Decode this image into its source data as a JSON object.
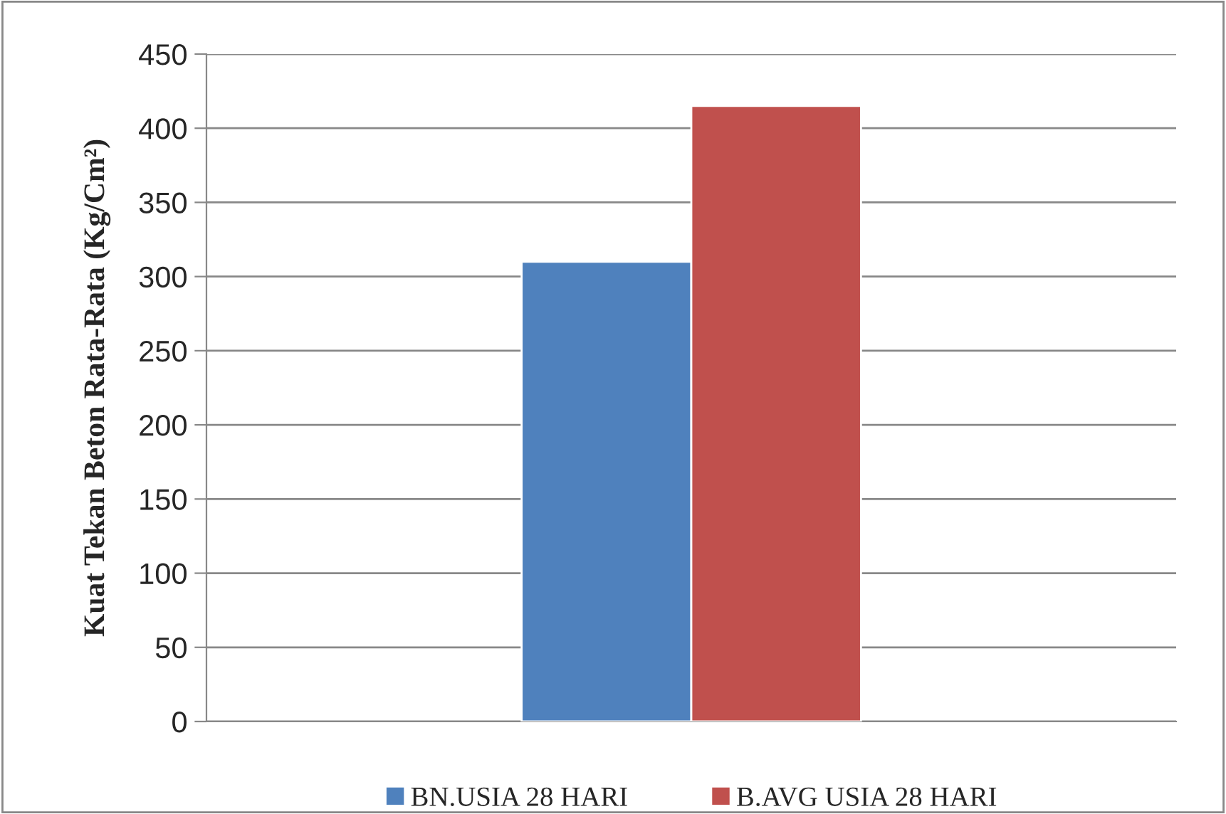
{
  "chart_data": {
    "type": "bar",
    "ylabel": "Kuat Tekan Beton Rata-Rata (Kg/Cm²)",
    "categories": [
      null
    ],
    "series": [
      {
        "name": "BN.USIA 28 HARI",
        "color": "#4f81bd",
        "values": [
          310
        ]
      },
      {
        "name": "B.AVG USIA 28 HARI",
        "color": "#c0504d",
        "values": [
          415
        ]
      }
    ],
    "ylim": [
      0,
      450
    ],
    "yticks": [
      0,
      50,
      100,
      150,
      200,
      250,
      300,
      350,
      400,
      450
    ],
    "grid": "y",
    "legend": "bottom"
  }
}
